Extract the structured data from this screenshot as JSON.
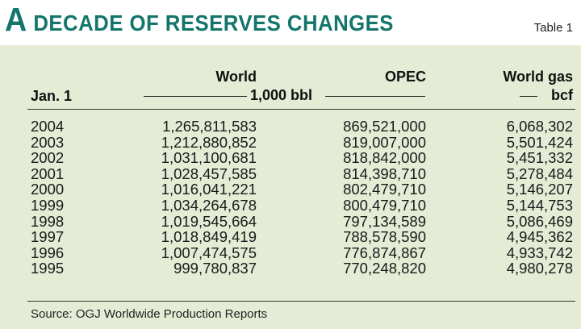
{
  "title": {
    "initial": "A",
    "rest": "DECADE OF RESERVES CHANGES"
  },
  "table_label": "Table 1",
  "headers": {
    "date": "Jan. 1",
    "world": "World",
    "opec": "OPEC",
    "world_gas": "World gas",
    "oil_unit": "1,000 bbl",
    "gas_unit": "bcf"
  },
  "rows": [
    {
      "year": "2004",
      "world": "1,265,811,583",
      "opec": "869,521,000",
      "gas": "6,068,302"
    },
    {
      "year": "2003",
      "world": "1,212,880,852",
      "opec": "819,007,000",
      "gas": "5,501,424"
    },
    {
      "year": "2002",
      "world": "1,031,100,681",
      "opec": "818,842,000",
      "gas": "5,451,332"
    },
    {
      "year": "2001",
      "world": "1,028,457,585",
      "opec": "814,398,710",
      "gas": "5,278,484"
    },
    {
      "year": "2000",
      "world": "1,016,041,221",
      "opec": "802,479,710",
      "gas": "5,146,207"
    },
    {
      "year": "1999",
      "world": "1,034,264,678",
      "opec": "800,479,710",
      "gas": "5,144,753"
    },
    {
      "year": "1998",
      "world": "1,019,545,664",
      "opec": "797,134,589",
      "gas": "5,086,469"
    },
    {
      "year": "1997",
      "world": "1,018,849,419",
      "opec": "788,578,590",
      "gas": "4,945,362"
    },
    {
      "year": "1996",
      "world": "1,007,474,575",
      "opec": "776,874,867",
      "gas": "4,933,742"
    },
    {
      "year": "1995",
      "world": "999,780,837",
      "opec": "770,248,820",
      "gas": "4,980,278"
    }
  ],
  "source": "Source: OGJ Worldwide Production Reports",
  "colors": {
    "title": "#14756b",
    "panel": "#e4ecd5"
  }
}
